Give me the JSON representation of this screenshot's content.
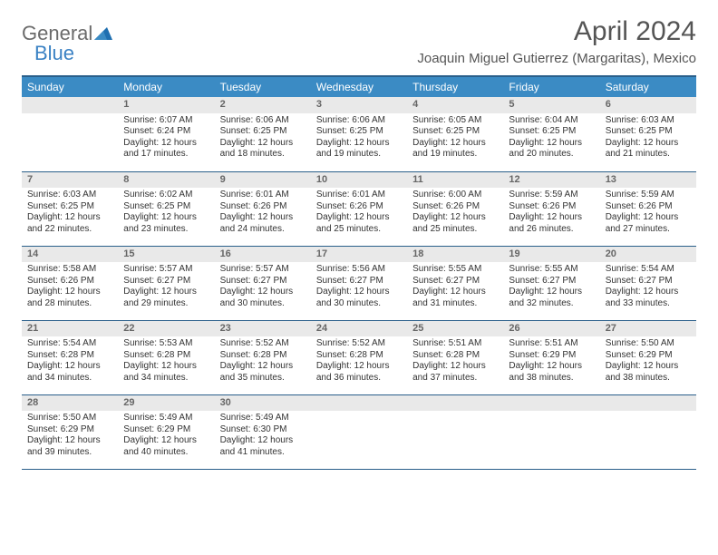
{
  "logo": {
    "general": "General",
    "blue": "Blue"
  },
  "title": "April 2024",
  "location": "Joaquin Miguel Gutierrez (Margaritas), Mexico",
  "colors": {
    "header_bg": "#3b8bc4",
    "header_text": "#ffffff",
    "border": "#2a5f8a",
    "daynum_bg": "#e9e9e9",
    "logo_gray": "#6b6b6b",
    "logo_blue": "#3b82c4",
    "body_bg": "#ffffff"
  },
  "weekdays": [
    "Sunday",
    "Monday",
    "Tuesday",
    "Wednesday",
    "Thursday",
    "Friday",
    "Saturday"
  ],
  "weeks": [
    [
      {
        "n": "",
        "sunrise": "",
        "sunset": "",
        "daylight": ""
      },
      {
        "n": "1",
        "sunrise": "Sunrise: 6:07 AM",
        "sunset": "Sunset: 6:24 PM",
        "daylight": "Daylight: 12 hours and 17 minutes."
      },
      {
        "n": "2",
        "sunrise": "Sunrise: 6:06 AM",
        "sunset": "Sunset: 6:25 PM",
        "daylight": "Daylight: 12 hours and 18 minutes."
      },
      {
        "n": "3",
        "sunrise": "Sunrise: 6:06 AM",
        "sunset": "Sunset: 6:25 PM",
        "daylight": "Daylight: 12 hours and 19 minutes."
      },
      {
        "n": "4",
        "sunrise": "Sunrise: 6:05 AM",
        "sunset": "Sunset: 6:25 PM",
        "daylight": "Daylight: 12 hours and 19 minutes."
      },
      {
        "n": "5",
        "sunrise": "Sunrise: 6:04 AM",
        "sunset": "Sunset: 6:25 PM",
        "daylight": "Daylight: 12 hours and 20 minutes."
      },
      {
        "n": "6",
        "sunrise": "Sunrise: 6:03 AM",
        "sunset": "Sunset: 6:25 PM",
        "daylight": "Daylight: 12 hours and 21 minutes."
      }
    ],
    [
      {
        "n": "7",
        "sunrise": "Sunrise: 6:03 AM",
        "sunset": "Sunset: 6:25 PM",
        "daylight": "Daylight: 12 hours and 22 minutes."
      },
      {
        "n": "8",
        "sunrise": "Sunrise: 6:02 AM",
        "sunset": "Sunset: 6:25 PM",
        "daylight": "Daylight: 12 hours and 23 minutes."
      },
      {
        "n": "9",
        "sunrise": "Sunrise: 6:01 AM",
        "sunset": "Sunset: 6:26 PM",
        "daylight": "Daylight: 12 hours and 24 minutes."
      },
      {
        "n": "10",
        "sunrise": "Sunrise: 6:01 AM",
        "sunset": "Sunset: 6:26 PM",
        "daylight": "Daylight: 12 hours and 25 minutes."
      },
      {
        "n": "11",
        "sunrise": "Sunrise: 6:00 AM",
        "sunset": "Sunset: 6:26 PM",
        "daylight": "Daylight: 12 hours and 25 minutes."
      },
      {
        "n": "12",
        "sunrise": "Sunrise: 5:59 AM",
        "sunset": "Sunset: 6:26 PM",
        "daylight": "Daylight: 12 hours and 26 minutes."
      },
      {
        "n": "13",
        "sunrise": "Sunrise: 5:59 AM",
        "sunset": "Sunset: 6:26 PM",
        "daylight": "Daylight: 12 hours and 27 minutes."
      }
    ],
    [
      {
        "n": "14",
        "sunrise": "Sunrise: 5:58 AM",
        "sunset": "Sunset: 6:26 PM",
        "daylight": "Daylight: 12 hours and 28 minutes."
      },
      {
        "n": "15",
        "sunrise": "Sunrise: 5:57 AM",
        "sunset": "Sunset: 6:27 PM",
        "daylight": "Daylight: 12 hours and 29 minutes."
      },
      {
        "n": "16",
        "sunrise": "Sunrise: 5:57 AM",
        "sunset": "Sunset: 6:27 PM",
        "daylight": "Daylight: 12 hours and 30 minutes."
      },
      {
        "n": "17",
        "sunrise": "Sunrise: 5:56 AM",
        "sunset": "Sunset: 6:27 PM",
        "daylight": "Daylight: 12 hours and 30 minutes."
      },
      {
        "n": "18",
        "sunrise": "Sunrise: 5:55 AM",
        "sunset": "Sunset: 6:27 PM",
        "daylight": "Daylight: 12 hours and 31 minutes."
      },
      {
        "n": "19",
        "sunrise": "Sunrise: 5:55 AM",
        "sunset": "Sunset: 6:27 PM",
        "daylight": "Daylight: 12 hours and 32 minutes."
      },
      {
        "n": "20",
        "sunrise": "Sunrise: 5:54 AM",
        "sunset": "Sunset: 6:27 PM",
        "daylight": "Daylight: 12 hours and 33 minutes."
      }
    ],
    [
      {
        "n": "21",
        "sunrise": "Sunrise: 5:54 AM",
        "sunset": "Sunset: 6:28 PM",
        "daylight": "Daylight: 12 hours and 34 minutes."
      },
      {
        "n": "22",
        "sunrise": "Sunrise: 5:53 AM",
        "sunset": "Sunset: 6:28 PM",
        "daylight": "Daylight: 12 hours and 34 minutes."
      },
      {
        "n": "23",
        "sunrise": "Sunrise: 5:52 AM",
        "sunset": "Sunset: 6:28 PM",
        "daylight": "Daylight: 12 hours and 35 minutes."
      },
      {
        "n": "24",
        "sunrise": "Sunrise: 5:52 AM",
        "sunset": "Sunset: 6:28 PM",
        "daylight": "Daylight: 12 hours and 36 minutes."
      },
      {
        "n": "25",
        "sunrise": "Sunrise: 5:51 AM",
        "sunset": "Sunset: 6:28 PM",
        "daylight": "Daylight: 12 hours and 37 minutes."
      },
      {
        "n": "26",
        "sunrise": "Sunrise: 5:51 AM",
        "sunset": "Sunset: 6:29 PM",
        "daylight": "Daylight: 12 hours and 38 minutes."
      },
      {
        "n": "27",
        "sunrise": "Sunrise: 5:50 AM",
        "sunset": "Sunset: 6:29 PM",
        "daylight": "Daylight: 12 hours and 38 minutes."
      }
    ],
    [
      {
        "n": "28",
        "sunrise": "Sunrise: 5:50 AM",
        "sunset": "Sunset: 6:29 PM",
        "daylight": "Daylight: 12 hours and 39 minutes."
      },
      {
        "n": "29",
        "sunrise": "Sunrise: 5:49 AM",
        "sunset": "Sunset: 6:29 PM",
        "daylight": "Daylight: 12 hours and 40 minutes."
      },
      {
        "n": "30",
        "sunrise": "Sunrise: 5:49 AM",
        "sunset": "Sunset: 6:30 PM",
        "daylight": "Daylight: 12 hours and 41 minutes."
      },
      {
        "n": "",
        "sunrise": "",
        "sunset": "",
        "daylight": ""
      },
      {
        "n": "",
        "sunrise": "",
        "sunset": "",
        "daylight": ""
      },
      {
        "n": "",
        "sunrise": "",
        "sunset": "",
        "daylight": ""
      },
      {
        "n": "",
        "sunrise": "",
        "sunset": "",
        "daylight": ""
      }
    ]
  ]
}
